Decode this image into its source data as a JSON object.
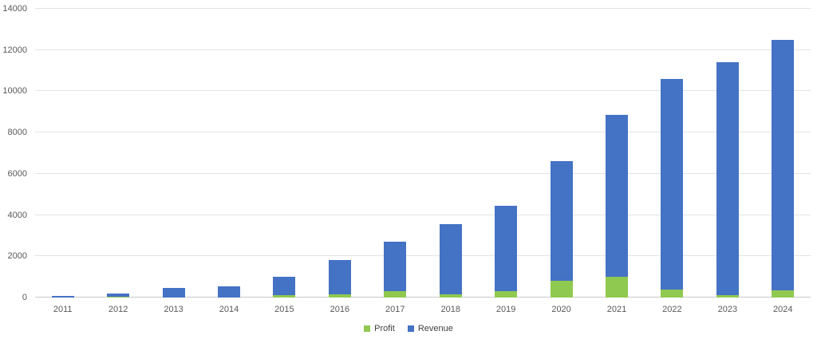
{
  "chart_data": {
    "type": "bar",
    "stacked": true,
    "title": "",
    "xlabel": "",
    "ylabel": "",
    "categories": [
      "2011",
      "2012",
      "2013",
      "2014",
      "2015",
      "2016",
      "2017",
      "2018",
      "2019",
      "2020",
      "2021",
      "2022",
      "2023",
      "2024"
    ],
    "series": [
      {
        "name": "Profit",
        "color": "#90C950",
        "values": [
          0,
          50,
          0,
          0,
          100,
          150,
          300,
          150,
          300,
          800,
          1000,
          400,
          100,
          350
        ]
      },
      {
        "name": "Revenue",
        "color": "#4472C4",
        "values": [
          75,
          150,
          450,
          550,
          900,
          1650,
          2400,
          3400,
          4150,
          5800,
          7850,
          10200,
          11300,
          12150
        ]
      }
    ],
    "ylim": [
      0,
      14000
    ],
    "ytick_step": 2000,
    "y_tick_labels": [
      "0",
      "2000",
      "4000",
      "6000",
      "8000",
      "10000",
      "12000",
      "14000"
    ],
    "grid": true,
    "legend_position": "bottom-center"
  },
  "colors": {
    "background": "#ffffff",
    "gridline": "#e3e3e3",
    "axis_line": "#c9c9c9",
    "tick_label": "#595959",
    "legend_text": "#3f3f3f"
  }
}
